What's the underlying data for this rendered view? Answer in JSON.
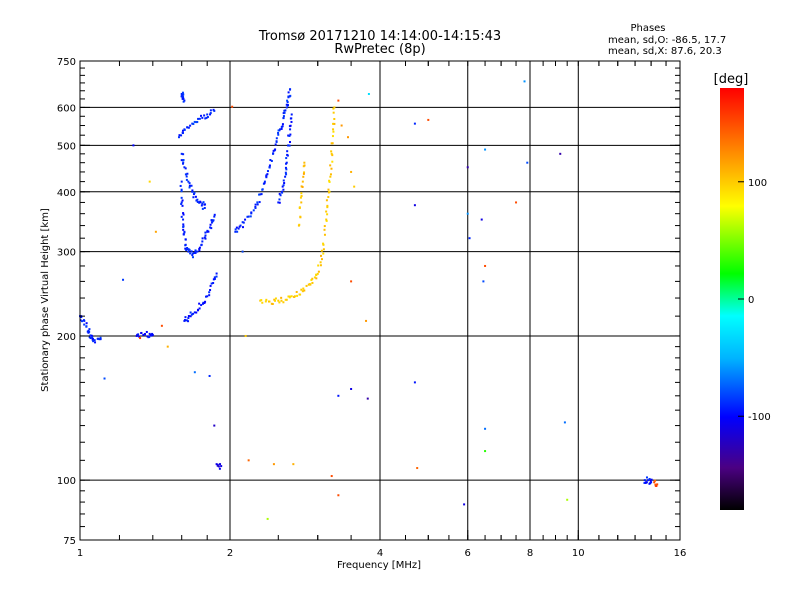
{
  "chart_data": {
    "type": "scatter",
    "title": "Tromsø 20171210 14:14:00-14:15:43",
    "subtitle": "RwPretec (8p)",
    "xlabel": "Frequency [MHz]",
    "ylabel": "Stationary phase Virtual Height [km]",
    "x_scale": "log",
    "y_scale": "log",
    "xlim": [
      1,
      16
    ],
    "ylim": [
      75,
      750
    ],
    "x_ticks": [
      1,
      2,
      4,
      6,
      8,
      10,
      16
    ],
    "x_tick_labels": [
      "1",
      "2",
      "4",
      "6",
      "8",
      "10",
      "16"
    ],
    "y_ticks": [
      75,
      100,
      200,
      300,
      400,
      500,
      600,
      750
    ],
    "y_tick_labels": [
      "75",
      "100",
      "200",
      "300",
      "400",
      "500",
      "600",
      "750"
    ],
    "grid": true,
    "stats": {
      "heading": "Phases",
      "o_line": "mean, sd,O: -86.5, 17.7",
      "x_line": "mean, sd,X:  87.6, 20.3"
    },
    "colorbar": {
      "label": "[deg]",
      "range": [
        -180,
        180
      ],
      "ticks": [
        100,
        0,
        -100
      ],
      "tick_labels": [
        "100",
        "0",
        "-100"
      ]
    },
    "traces": [
      {
        "name": "",
        "phase": -95,
        "points": [
          [
            1.62,
            215
          ],
          [
            1.65,
            218
          ],
          [
            1.7,
            224
          ],
          [
            1.75,
            232
          ],
          [
            1.8,
            242
          ],
          [
            1.85,
            258
          ],
          [
            1.88,
            270
          ]
        ]
      },
      {
        "name": "",
        "phase": -92,
        "points": [
          [
            1.6,
            420
          ],
          [
            1.6,
            380
          ],
          [
            1.61,
            350
          ],
          [
            1.62,
            330
          ],
          [
            1.63,
            310
          ],
          [
            1.65,
            300
          ],
          [
            1.68,
            295
          ],
          [
            1.72,
            300
          ],
          [
            1.76,
            315
          ],
          [
            1.8,
            330
          ],
          [
            1.84,
            345
          ],
          [
            1.86,
            355
          ]
        ]
      },
      {
        "name": "",
        "phase": -90,
        "points": [
          [
            1.6,
            480
          ],
          [
            1.62,
            450
          ],
          [
            1.65,
            420
          ],
          [
            1.68,
            400
          ],
          [
            1.72,
            385
          ],
          [
            1.76,
            378
          ],
          [
            1.78,
            370
          ]
        ]
      },
      {
        "name": "",
        "phase": -88,
        "points": [
          [
            1.58,
            520
          ],
          [
            1.62,
            540
          ],
          [
            1.68,
            555
          ],
          [
            1.74,
            568
          ],
          [
            1.8,
            580
          ],
          [
            1.86,
            590
          ]
        ]
      },
      {
        "name": "",
        "phase": -92,
        "points": [
          [
            1.6,
            640
          ],
          [
            1.61,
            630
          ],
          [
            1.62,
            620
          ]
        ]
      },
      {
        "name": "",
        "phase": -90,
        "points": [
          [
            2.05,
            330
          ],
          [
            2.1,
            340
          ],
          [
            2.18,
            355
          ],
          [
            2.25,
            370
          ],
          [
            2.3,
            395
          ],
          [
            2.35,
            420
          ],
          [
            2.4,
            450
          ],
          [
            2.44,
            480
          ],
          [
            2.48,
            510
          ],
          [
            2.52,
            540
          ],
          [
            2.56,
            570
          ],
          [
            2.6,
            600
          ],
          [
            2.62,
            630
          ],
          [
            2.64,
            655
          ]
        ]
      },
      {
        "name": "",
        "phase": -93,
        "points": [
          [
            2.5,
            380
          ],
          [
            2.54,
            400
          ],
          [
            2.58,
            430
          ],
          [
            2.6,
            460
          ],
          [
            2.62,
            500
          ],
          [
            2.64,
            540
          ],
          [
            2.66,
            580
          ]
        ]
      },
      {
        "name": "",
        "phase": 100,
        "points": [
          [
            2.3,
            237
          ],
          [
            2.4,
            236
          ],
          [
            2.5,
            237
          ],
          [
            2.6,
            238
          ],
          [
            2.7,
            242
          ],
          [
            2.8,
            248
          ],
          [
            2.9,
            256
          ],
          [
            2.98,
            268
          ],
          [
            3.04,
            285
          ],
          [
            3.08,
            310
          ],
          [
            3.12,
            350
          ],
          [
            3.15,
            390
          ],
          [
            3.18,
            430
          ],
          [
            3.2,
            480
          ],
          [
            3.22,
            540
          ],
          [
            3.24,
            600
          ]
        ]
      },
      {
        "name": "",
        "phase": 105,
        "points": [
          [
            2.75,
            340
          ],
          [
            2.78,
            380
          ],
          [
            2.8,
            420
          ],
          [
            2.82,
            460
          ]
        ]
      },
      {
        "name": "",
        "phase": -92,
        "points": [
          [
            1.0,
            220
          ],
          [
            1.02,
            215
          ],
          [
            1.04,
            205
          ],
          [
            1.05,
            198
          ],
          [
            1.07,
            196
          ],
          [
            1.1,
            197
          ]
        ]
      },
      {
        "name": "",
        "phase": -100,
        "points": [
          [
            1.3,
            200
          ],
          [
            1.34,
            201
          ],
          [
            1.38,
            202
          ],
          [
            1.4,
            201
          ]
        ]
      },
      {
        "name": "",
        "phase": -95,
        "points": [
          [
            13.6,
            100
          ],
          [
            13.8,
            100
          ],
          [
            14.0,
            99
          ]
        ]
      },
      {
        "name": "",
        "phase": 150,
        "points": [
          [
            14.2,
            99
          ],
          [
            14.4,
            98
          ]
        ]
      },
      {
        "name": "",
        "phase": -110,
        "points": [
          [
            1.88,
            108
          ],
          [
            1.92,
            107
          ]
        ]
      }
    ],
    "scatter_points": [
      [
        1.28,
        500,
        -100
      ],
      [
        1.38,
        420,
        95
      ],
      [
        1.42,
        330,
        115
      ],
      [
        1.22,
        262,
        -85
      ],
      [
        1.46,
        210,
        150
      ],
      [
        1.32,
        198,
        155
      ],
      [
        1.5,
        190,
        110
      ],
      [
        1.12,
        163,
        -80
      ],
      [
        1.7,
        168,
        -70
      ],
      [
        1.82,
        165,
        -90
      ],
      [
        1.86,
        130,
        -120
      ],
      [
        2.02,
        602,
        150
      ],
      [
        2.12,
        300,
        130
      ],
      [
        2.15,
        200,
        100
      ],
      [
        2.12,
        300,
        -80
      ],
      [
        2.18,
        110,
        140
      ],
      [
        2.45,
        108,
        120
      ],
      [
        2.68,
        108,
        110
      ],
      [
        2.38,
        83,
        60
      ],
      [
        3.2,
        102,
        150
      ],
      [
        3.3,
        93,
        150
      ],
      [
        3.3,
        150,
        -95
      ],
      [
        3.5,
        155,
        -110
      ],
      [
        3.78,
        148,
        -130
      ],
      [
        3.5,
        260,
        150
      ],
      [
        3.75,
        215,
        120
      ],
      [
        3.8,
        640,
        -30
      ],
      [
        3.3,
        620,
        150
      ],
      [
        3.35,
        550,
        120
      ],
      [
        3.45,
        520,
        120
      ],
      [
        3.5,
        440,
        110
      ],
      [
        3.55,
        410,
        100
      ],
      [
        4.7,
        555,
        -90
      ],
      [
        5.0,
        565,
        150
      ],
      [
        4.7,
        375,
        -110
      ],
      [
        4.7,
        160,
        -95
      ],
      [
        4.75,
        106,
        140
      ],
      [
        5.9,
        89,
        -110
      ],
      [
        6.0,
        360,
        -60
      ],
      [
        6.0,
        450,
        -130
      ],
      [
        6.05,
        320,
        -90
      ],
      [
        6.4,
        350,
        -110
      ],
      [
        6.5,
        280,
        150
      ],
      [
        6.45,
        260,
        -80
      ],
      [
        6.5,
        128,
        -70
      ],
      [
        6.5,
        115,
        30
      ],
      [
        6.5,
        490,
        -60
      ],
      [
        7.5,
        380,
        150
      ],
      [
        7.8,
        680,
        -60
      ],
      [
        7.9,
        460,
        -80
      ],
      [
        9.2,
        480,
        -130
      ],
      [
        9.4,
        132,
        -70
      ],
      [
        9.5,
        91,
        60
      ]
    ]
  }
}
